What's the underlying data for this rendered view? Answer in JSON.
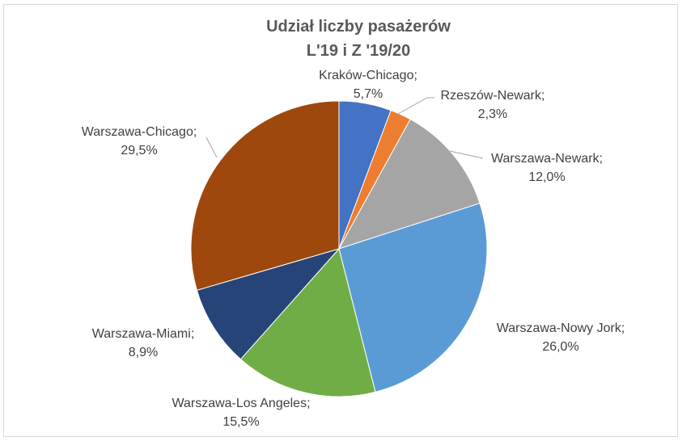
{
  "chart_data": {
    "type": "pie",
    "title_lines": [
      "Udział liczby pasażerów",
      "L'19 i Z '19/20"
    ],
    "slices": [
      {
        "name": "Kraków-Chicago",
        "value": 5.7,
        "label_name": "Kraków-Chicago;",
        "label_value": "5,7%",
        "color": "#4472c4"
      },
      {
        "name": "Rzeszów-Newark",
        "value": 2.3,
        "label_name": "Rzeszów-Newark;",
        "label_value": "2,3%",
        "color": "#ed7d31"
      },
      {
        "name": "Warszawa-Newark",
        "value": 12.0,
        "label_name": "Warszawa-Newark;",
        "label_value": "12,0%",
        "color": "#a5a5a5"
      },
      {
        "name": "Warszawa-Nowy Jork",
        "value": 26.0,
        "label_name": "Warszawa-Nowy Jork;",
        "label_value": "26,0%",
        "color": "#5b9bd5"
      },
      {
        "name": "Warszawa-Los Angeles",
        "value": 15.5,
        "label_name": "Warszawa-Los Angeles;",
        "label_value": "15,5%",
        "color": "#70ad47"
      },
      {
        "name": "Warszawa-Miami",
        "value": 8.9,
        "label_name": "Warszawa-Miami;",
        "label_value": "8,9%",
        "color": "#264478"
      },
      {
        "name": "Warszawa-Chicago",
        "value": 29.5,
        "label_name": "Warszawa-Chicago;",
        "label_value": "29,5%",
        "color": "#9e480e"
      }
    ],
    "legend": "none"
  }
}
